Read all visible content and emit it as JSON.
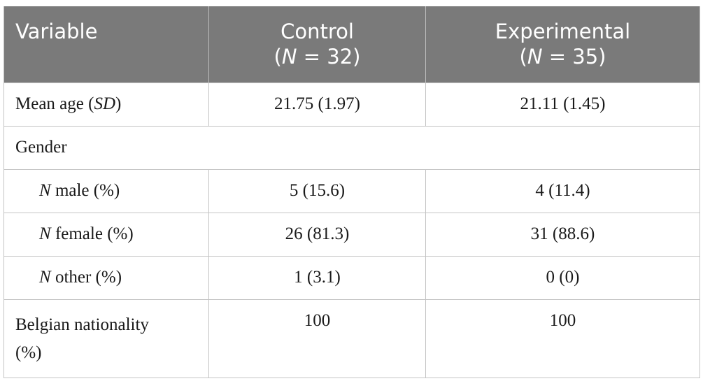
{
  "header": {
    "variable": "Variable",
    "control_label": "Control",
    "control_n_prefix": "(",
    "control_n_italic": "N",
    "control_n_suffix": " = 32)",
    "experimental_label": "Experimental",
    "experimental_n_prefix": "(",
    "experimental_n_italic": "N",
    "experimental_n_suffix": " = 35)"
  },
  "rows": {
    "mean_age": {
      "label": "Mean age (",
      "label_italic": "SD",
      "label_suffix": ")",
      "control": "21.75 (1.97)",
      "experimental": "21.11 (1.45)"
    },
    "gender": {
      "label": "Gender"
    },
    "male": {
      "label_italic": "N",
      "label": " male (%)",
      "control": "5 (15.6)",
      "experimental": "4 (11.4)"
    },
    "female": {
      "label_italic": "N",
      "label": " female (%)",
      "control": "26 (81.3)",
      "experimental": "31 (88.6)"
    },
    "other": {
      "label_italic": "N",
      "label": " other (%)",
      "control": "1 (3.1)",
      "experimental": "0 (0)"
    },
    "belgian": {
      "label_line1": "Belgian nationality",
      "label_line2": "(%)",
      "control": "100",
      "experimental": "100"
    }
  }
}
